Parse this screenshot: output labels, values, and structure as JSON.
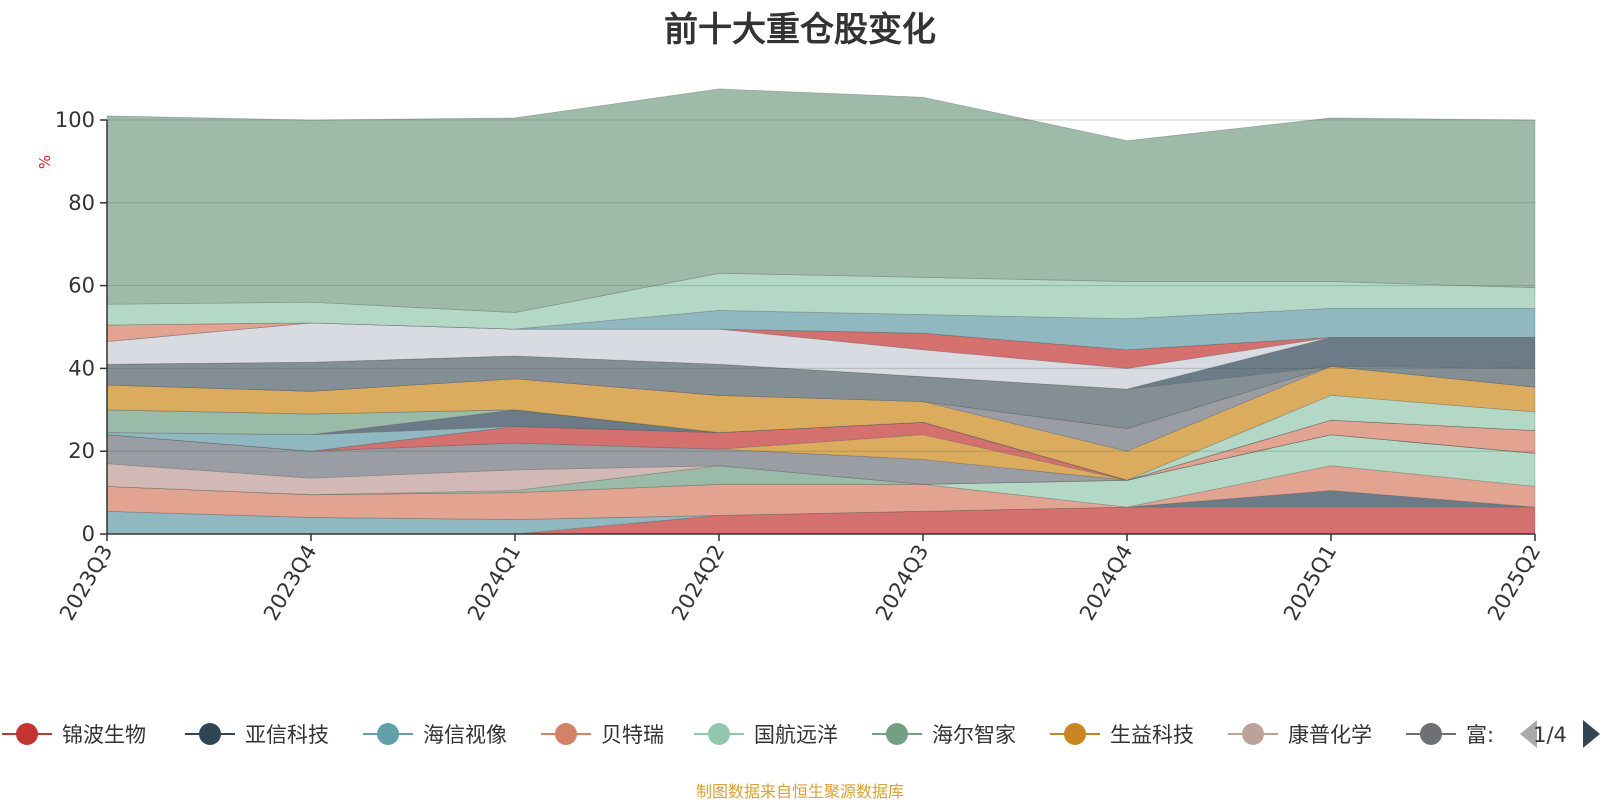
{
  "page": {
    "title": "前十大重仓股变化",
    "footer": "制图数据来自恒生聚源数据库",
    "legend_pager": "1/4"
  },
  "chart_data": {
    "type": "area",
    "title": "前十大重仓股变化",
    "ylabel": "%",
    "ylim": [
      0,
      100
    ],
    "yticks": [
      0,
      20,
      40,
      60,
      80,
      100
    ],
    "grid": true,
    "stacked": true,
    "legend_position": "bottom",
    "x": [
      "2023Q3",
      "2023Q4",
      "2024Q1",
      "2024Q2",
      "2024Q3",
      "2024Q4",
      "2025Q1",
      "2025Q2"
    ],
    "layers": [
      {
        "color": "#d4716f",
        "values": [
          0,
          0,
          0,
          4.5,
          5.5,
          6.5,
          6.5,
          6.5
        ]
      },
      {
        "color": "#90b8c0",
        "values": [
          5.5,
          4,
          3.5,
          0,
          0,
          0,
          0,
          0
        ]
      },
      {
        "color": "#6b7b87",
        "values": [
          0,
          0,
          0,
          0,
          0,
          0,
          4,
          0
        ]
      },
      {
        "color": "#e3a391",
        "values": [
          6,
          5.5,
          6.5,
          7.5,
          6.5,
          0,
          6,
          5
        ]
      },
      {
        "color": "#b3d8c6",
        "values": [
          0,
          0,
          0,
          0,
          0,
          6.5,
          7.5,
          8
        ]
      },
      {
        "color": "#9abba8",
        "values": [
          0,
          0,
          0.5,
          4.5,
          0,
          0,
          0,
          0
        ]
      },
      {
        "color": "#d2b9b5",
        "values": [
          5.5,
          4,
          5,
          0,
          0,
          0,
          0,
          0
        ]
      },
      {
        "color": "#9a9da3",
        "values": [
          7,
          6.5,
          6.5,
          4,
          6,
          0,
          0,
          0
        ]
      },
      {
        "color": "#dbab5e",
        "values": [
          0,
          0,
          0,
          0,
          6,
          0,
          0,
          0
        ]
      },
      {
        "color": "#d4716f",
        "values": [
          0,
          0,
          4,
          4,
          3,
          0,
          0,
          0
        ]
      },
      {
        "color": "#e3a391",
        "values": [
          0,
          0,
          0,
          0,
          0,
          0,
          3.5,
          5.5
        ]
      },
      {
        "color": "#90b8c0",
        "values": [
          0.5,
          4,
          0,
          0,
          0,
          0,
          0,
          0
        ]
      },
      {
        "color": "#6b7b87",
        "values": [
          0,
          0,
          4,
          0,
          0,
          0,
          0,
          0
        ]
      },
      {
        "color": "#9abba8",
        "values": [
          5.5,
          5,
          0,
          0,
          0,
          0,
          0,
          0
        ]
      },
      {
        "color": "#b3d8c6",
        "values": [
          0,
          0,
          0,
          0,
          0,
          0,
          6,
          4.5
        ]
      },
      {
        "color": "#dbab5e",
        "values": [
          6,
          5.5,
          7.5,
          9,
          5,
          7,
          7,
          6
        ]
      },
      {
        "color": "#9a9da3",
        "values": [
          0,
          0,
          0,
          0,
          0,
          5.5,
          0,
          0
        ]
      },
      {
        "color": "#d2b9b5",
        "values": [
          0,
          0,
          0,
          0,
          0,
          0,
          0,
          0
        ]
      },
      {
        "color": "#848f95",
        "values": [
          5,
          7,
          5.5,
          7.5,
          6,
          9.5,
          0,
          4.5
        ]
      },
      {
        "color": "#6b7b87",
        "values": [
          0,
          0,
          0,
          0,
          0,
          0,
          7,
          7.5
        ]
      },
      {
        "color": "#d8dbe2",
        "values": [
          5.5,
          9.5,
          6.5,
          8.5,
          6.5,
          5,
          0,
          0
        ]
      },
      {
        "color": "#d4716f",
        "values": [
          0,
          0,
          0,
          0,
          4,
          4.5,
          0,
          0
        ]
      },
      {
        "color": "#e3a391",
        "values": [
          4,
          0,
          0,
          0,
          0,
          0,
          0,
          0
        ]
      },
      {
        "color": "#90b8c0",
        "values": [
          0,
          0,
          0,
          4.5,
          4.5,
          7.5,
          7,
          7
        ]
      },
      {
        "color": "#b3d8c6",
        "values": [
          5,
          5,
          4,
          9,
          9,
          9,
          6.5,
          5
        ]
      },
      {
        "color": "#9dbba8",
        "values": [
          45.5,
          44,
          47,
          44.5,
          43.5,
          34,
          39.5,
          40.5
        ]
      }
    ],
    "legend": [
      {
        "name": "锦波生物",
        "color": "#c23531"
      },
      {
        "name": "亚信科技",
        "color": "#2f4554"
      },
      {
        "name": "海信视像",
        "color": "#61a0a8"
      },
      {
        "name": "贝特瑞",
        "color": "#d48265"
      },
      {
        "name": "国航远洋",
        "color": "#91c7ae"
      },
      {
        "name": "海尔智家",
        "color": "#749f83"
      },
      {
        "name": "生益科技",
        "color": "#ca8622"
      },
      {
        "name": "康普化学",
        "color": "#bda29a"
      },
      {
        "name": "富:",
        "color": "#6e7074"
      }
    ]
  }
}
